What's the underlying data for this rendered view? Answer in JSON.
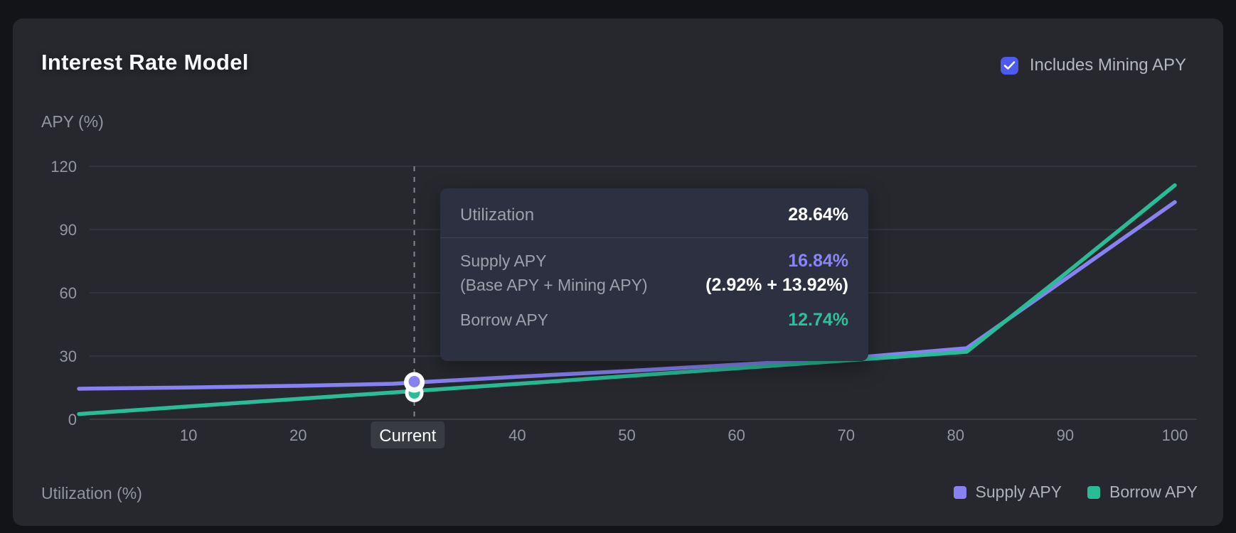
{
  "header": {
    "title": "Interest Rate Model",
    "checkbox_label": "Includes Mining APY",
    "checkbox_checked": true
  },
  "axes": {
    "y_title": "APY (%)",
    "x_title": "Utilization (%)"
  },
  "tooltip": {
    "utilization_label": "Utilization",
    "utilization_value": "28.64%",
    "supply_label": "Supply APY",
    "supply_sublabel": "(Base APY + Mining APY)",
    "supply_value": "16.84%",
    "supply_breakdown": "(2.92% + 13.92%)",
    "borrow_label": "Borrow APY",
    "borrow_value": "12.74%"
  },
  "legend": [
    {
      "label": "Supply APY",
      "color": "#8781f1"
    },
    {
      "label": "Borrow APY",
      "color": "#28bd96"
    }
  ],
  "colors": {
    "page_bg": "#131418",
    "card_bg": "#26282e",
    "tooltip_bg": "#2d3040",
    "grid": "#3a3c43",
    "axis_line": "#47494f",
    "dashed_line": "#83868d",
    "current_pill_bg": "#393b43",
    "text_muted": "#94979f",
    "text_bright": "#f7f8fa",
    "supply_purple": "#8781f1",
    "borrow_green": "#28bd96",
    "checkbox_blue": "#4c5af0"
  },
  "chart_data": {
    "type": "line",
    "title": "Interest Rate Model",
    "xlabel": "Utilization (%)",
    "ylabel": "APY (%)",
    "xlim": [
      0,
      100
    ],
    "ylim": [
      0,
      120
    ],
    "grid": "horizontal",
    "legend_position": "bottom-right",
    "y_ticks": [
      0,
      30,
      60,
      90,
      120
    ],
    "x_ticks": [
      {
        "value": 10,
        "label": "10"
      },
      {
        "value": 20,
        "label": "20"
      },
      {
        "value": 30,
        "label": "Current",
        "is_current": true
      },
      {
        "value": 40,
        "label": "40"
      },
      {
        "value": 50,
        "label": "50"
      },
      {
        "value": 60,
        "label": "60"
      },
      {
        "value": 70,
        "label": "70"
      },
      {
        "value": 80,
        "label": "80"
      },
      {
        "value": 90,
        "label": "90"
      },
      {
        "value": 100,
        "label": "100"
      }
    ],
    "series": [
      {
        "name": "Supply APY",
        "color": "#8781f1",
        "x": [
          0,
          10,
          20,
          28.64,
          40,
          50,
          60,
          70,
          81,
          90,
          100
        ],
        "y": [
          14.5,
          15.1,
          15.9,
          16.84,
          20.2,
          22.9,
          25.9,
          28.9,
          33.7,
          66.5,
          103
        ]
      },
      {
        "name": "Borrow APY",
        "color": "#28bd96",
        "x": [
          0,
          10,
          20,
          28.64,
          40,
          50,
          60,
          70,
          81,
          90,
          100
        ],
        "y": [
          2.5,
          6.1,
          9.7,
          12.74,
          16.8,
          20.5,
          24.2,
          27.9,
          32.0,
          69.0,
          111
        ]
      }
    ],
    "kink_utilization": 81,
    "current_marker": {
      "utilization_pct": 28.64,
      "supply_apy_pct": 16.84,
      "supply_base_apy_pct": 2.92,
      "supply_mining_apy_pct": 13.92,
      "borrow_apy_pct": 12.74,
      "marker_plotted_at_utilization": 30.6
    }
  }
}
